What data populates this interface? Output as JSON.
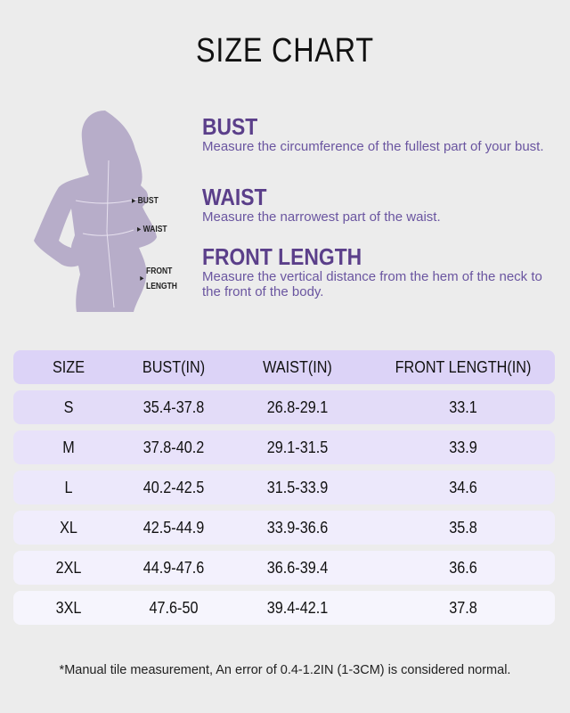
{
  "title": "SIZE CHART",
  "figure_labels": {
    "bust": "BUST",
    "waist": "WAIST",
    "front_length_1": "FRONT",
    "front_length_2": "LENGTH"
  },
  "measurements": [
    {
      "heading": "BUST",
      "text": "Measure the circumference of the fullest part of your bust."
    },
    {
      "heading": "WAIST",
      "text": "Measure the narrowest part of the waist."
    },
    {
      "heading": "FRONT LENGTH",
      "text": "Measure the vertical distance from the hem of the neck to the front of the body."
    }
  ],
  "table": {
    "headers": [
      "SIZE",
      "BUST(IN)",
      "WAIST(IN)",
      "FRONT LENGTH(IN)"
    ],
    "rows": [
      [
        "S",
        "35.4-37.8",
        "26.8-29.1",
        "33.1"
      ],
      [
        "M",
        "37.8-40.2",
        "29.1-31.5",
        "33.9"
      ],
      [
        "L",
        "40.2-42.5",
        "31.5-33.9",
        "34.6"
      ],
      [
        "XL",
        "42.5-44.9",
        "33.9-36.6",
        "35.8"
      ],
      [
        "2XL",
        "44.9-47.6",
        "36.6-39.4",
        "36.6"
      ],
      [
        "3XL",
        "47.6-50",
        "39.4-42.1",
        "37.8"
      ]
    ]
  },
  "footnote": "*Manual tile measurement, An error of 0.4-1.2IN (1-3CM) is considered normal.",
  "colors": {
    "accent": "#5b3f8a",
    "header_row": "#dcd3f7",
    "silhouette": "#b7adc9",
    "background": "#ececec"
  }
}
